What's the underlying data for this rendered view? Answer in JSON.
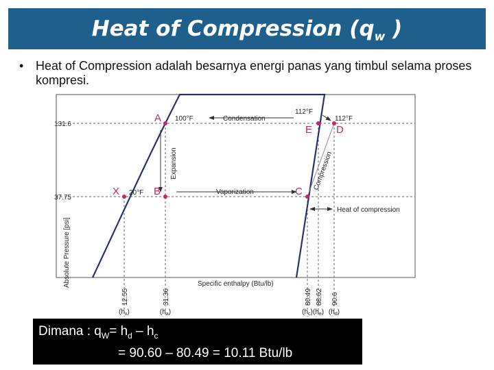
{
  "title": [
    {
      "text": "Heat of Compression (q"
    },
    {
      "text": "w",
      "sub": true
    },
    {
      "text": " )"
    }
  ],
  "bullet": {
    "marker": "•",
    "text": "Heat of Compression adalah besarnya energi panas yang timbul selama proses kompresi."
  },
  "diagram": {
    "y_axis_label": "Absolute Pressure [psi]",
    "x_axis_label": "Specific enthalpy (Btu/lb)",
    "pressures": [
      "131.6",
      "37.75"
    ],
    "points": [
      "A",
      "B",
      "C",
      "D",
      "E",
      "X"
    ],
    "temperatures": [
      "100°F",
      "20°F",
      "112°F",
      "112°F"
    ],
    "processes": [
      "Condensation",
      "Vaporization",
      "Expansion",
      "Compression",
      "Heat of compression"
    ],
    "enthalpies": [
      {
        "value": "12.55",
        "pre": "(h",
        "sub": "x",
        "post": ")"
      },
      {
        "value": "31.36",
        "pre": "(h",
        "sub": "a",
        "post": ")"
      },
      {
        "value": "80.49",
        "pre": "(h",
        "sub": "c",
        "post": ")"
      },
      {
        "value": "88.62",
        "pre": "(h",
        "sub": "e",
        "post": ")"
      },
      {
        "value": "90.6",
        "pre": "(h",
        "sub": "d",
        "post": ")"
      }
    ]
  },
  "formula": {
    "line1": [
      {
        "text": "Dimana : q"
      },
      {
        "text": "W",
        "sub": true
      },
      {
        "text": "= h"
      },
      {
        "text": "d",
        "sub": true
      },
      {
        "text": " – h"
      },
      {
        "text": "c",
        "sub": true
      }
    ],
    "line2": "= 90.60 – 80.49 = 10.11 Btu/lb"
  }
}
